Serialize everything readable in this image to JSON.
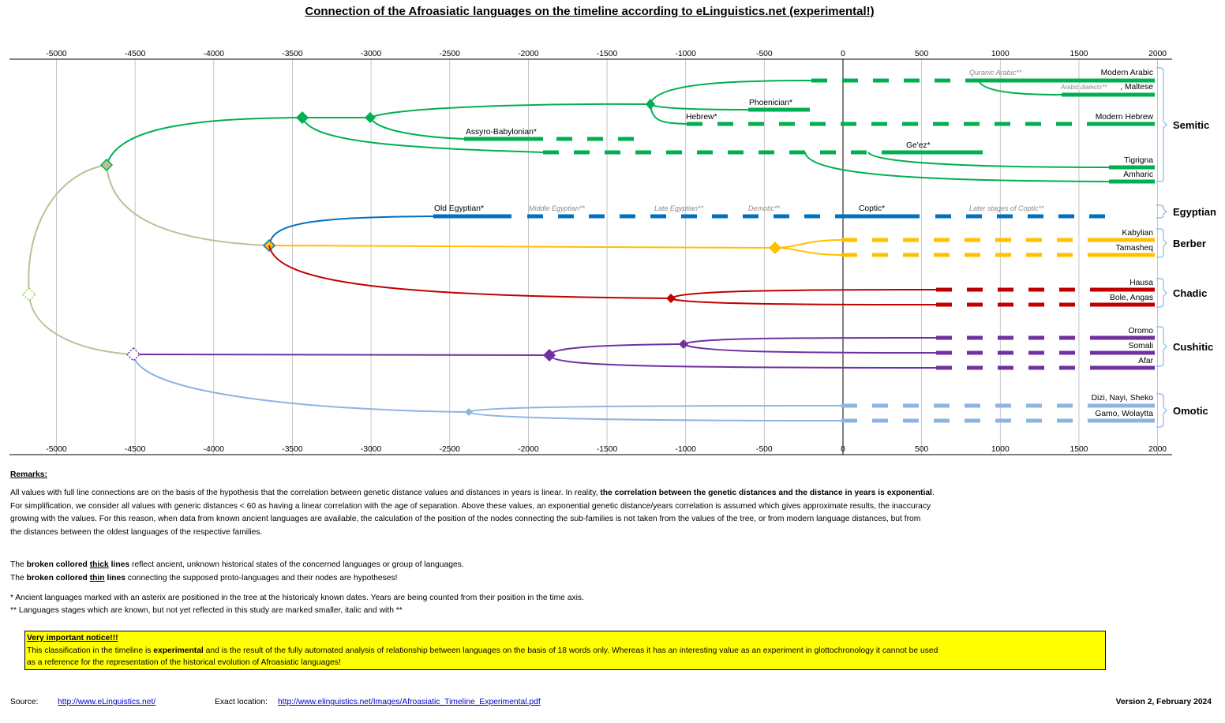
{
  "title": "Connection of the Afroasiatic languages on the timeline according to eLinguistics.net (experimental!)",
  "axis": {
    "ticks": [
      -5000,
      -4500,
      -4000,
      -3500,
      -3000,
      -2500,
      -2000,
      -1500,
      -1000,
      -500,
      0,
      500,
      1000,
      1500,
      2000
    ],
    "labels": [
      "-5000",
      "-4500",
      "-4000",
      "-3500",
      "-3000",
      "-2500",
      "-2000",
      "-1500",
      "-1000",
      "-500",
      "0",
      "500",
      "1000",
      "1500",
      "2000"
    ]
  },
  "families": [
    "Semitic",
    "Egyptian",
    "Berber",
    "Chadic",
    "Cushitic",
    "Omotic"
  ],
  "colors": {
    "semitic": "#00b050",
    "egyptian": "#0070c0",
    "berber": "#ffc000",
    "chadic": "#c00000",
    "cushitic": "#7030a0",
    "omotic": "#8db4e2",
    "proto": "#c4bd97"
  },
  "languages": {
    "modern_arabic": "Modern Arabic",
    "maltese": ", Maltese",
    "modern_hebrew": "Modern Hebrew",
    "tigrigna": "Tigrigna",
    "amharic": "Amharic",
    "kabylian": "Kabylian",
    "tamasheq": "Tamasheq",
    "hausa": "Hausa",
    "bole_angas": "Bole, Angas",
    "oromo": "Oromo",
    "somali": "Somali",
    "afar": "Afar",
    "dizi": "Dizi, Nayi, Sheko",
    "gamo": "Gamo, Wolaytta"
  },
  "ancient": {
    "phoenician": "Phoenician*",
    "hebrew": "Hebrew*",
    "assyro": "Assyro-Babylonian*",
    "geez": "Ge'ez*",
    "old_egyptian": "Old Egyptian*",
    "coptic": "Coptic*"
  },
  "stages": {
    "quranic": "Quranic Arabic**",
    "arabic_dialects": "Arabic dialects**",
    "middle_egyptian": "Middle Egyptian**",
    "late_egyptian": "Late Egyptian**",
    "demotic": "Demotic**",
    "later_coptic": "Later stages of Coptic**"
  },
  "remarks": {
    "title": "Remarks:",
    "p1a": "All values with full line connections  are on the basis of the hypothesis that the correlation between genetic distance values and distances in years is linear. In reality, ",
    "p1b": "the correlation between the genetic distances and the distance in years is exponential",
    "p1c": ".",
    "p2": "For simplification, we consider all values with generic distances < 60 as having a linear correlation with the age of separation. Above these values, an exponential genetic distance/years correlation is assumed which gives approximate results, the inaccuracy",
    "p3": "growing with the values. For this reason, when data from known ancient languages are available, the calculation of the position of the nodes connecting the sub-families is not taken from the values of the tree, or from modern language distances, but from",
    "p4": "the distances between the oldest languages of the respective families.",
    "thick_a": "The ",
    "thick_b": "broken collored ",
    "thick_c": "thick",
    "thick_d": " lines",
    "thick_e": " reflect ancient, unknown historical states of the concerned languages or group of languages.",
    "thin_a": "The ",
    "thin_b": "broken collored ",
    "thin_c": "thin",
    "thin_d": " lines",
    "thin_e": " connecting the supposed proto-languages and their nodes are hypotheses!",
    "star1": "* Ancient languages marked with an asterix are positioned in the tree at the historicaly known dates. Years are being counted from their position in the time axis.",
    "star2": "** Languages stages which are known, but not yet reflected in this study are marked smaller, italic and with **"
  },
  "notice": {
    "title": "Very important notice!!!",
    "l1a": "This classification in the timeline is ",
    "l1b": "experimental",
    "l1c": " and is the result of the fully automated analysis of relationship between languages on the basis of 18 words only. Whereas it has an interesting value as an experiment in glottochronology it cannot be used",
    "l2": "as a reference for the representation of the historical evolution of Afroasiatic languages!"
  },
  "footer": {
    "source_label": "Source:",
    "source_link": "http://www.eLinguistics.net/",
    "location_label": "Exact location:",
    "location_link": "http://www.elinguistics.net/Images/Afroasiatic_Timeline_Experimental.pdf",
    "version": "Version 2, February 2024"
  }
}
